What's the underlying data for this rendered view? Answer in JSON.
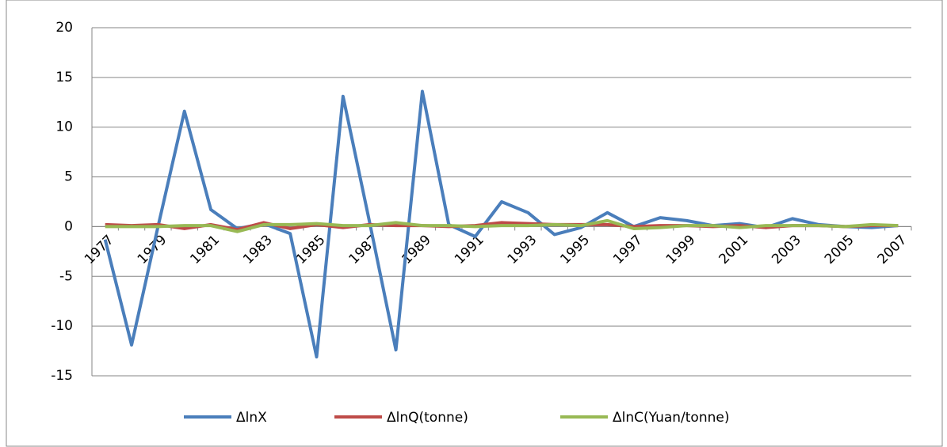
{
  "chart_data": {
    "type": "line",
    "categories": [
      "1977",
      null,
      "1979",
      null,
      "1981",
      null,
      "1983",
      null,
      "1985",
      null,
      "1987",
      null,
      "1989",
      null,
      "1991",
      null,
      "1993",
      null,
      "1995",
      null,
      "1997",
      null,
      "1999",
      null,
      "2001",
      null,
      "2003",
      null,
      "2005",
      null,
      "2007"
    ],
    "series": [
      {
        "name": "ΔlnX",
        "color": "#4a7ebb",
        "values": [
          -1.3,
          -11.9,
          0,
          11.6,
          1.7,
          -0.2,
          0.3,
          -0.7,
          -13.1,
          13.1,
          0.5,
          -12.4,
          13.6,
          0.2,
          -1.0,
          2.5,
          1.4,
          -0.8,
          -0.1,
          1.4,
          0.0,
          0.9,
          0.6,
          0.1,
          0.3,
          -0.1,
          0.8,
          0.2,
          0.0,
          -0.1,
          0.1
        ]
      },
      {
        "name": "ΔlnQ(tonne)",
        "color": "#be4b48",
        "values": [
          0.2,
          0.1,
          0.2,
          -0.2,
          0.2,
          -0.3,
          0.4,
          -0.2,
          0.2,
          -0.1,
          0.2,
          0.1,
          0.1,
          0.0,
          0.1,
          0.4,
          0.3,
          0.2,
          0.2,
          0.2,
          0.0,
          0.1,
          0.1,
          0.0,
          0.1,
          -0.1,
          0.1,
          0.1,
          0.0,
          0.1,
          0.1
        ]
      },
      {
        "name": "ΔlnC(Yuan/tonne)",
        "color": "#98b954",
        "values": [
          0.0,
          0.0,
          0.0,
          0.1,
          0.1,
          -0.5,
          0.2,
          0.2,
          0.3,
          0.1,
          0.1,
          0.4,
          0.1,
          0.1,
          0.0,
          0.1,
          0.1,
          0.2,
          0.1,
          0.6,
          -0.2,
          -0.1,
          0.1,
          0.1,
          -0.1,
          0.1,
          0.1,
          0.1,
          0.0,
          0.2,
          0.1
        ]
      }
    ],
    "ylim": [
      -15,
      20
    ],
    "yticks": [
      -15,
      -10,
      -5,
      0,
      5,
      10,
      15,
      20
    ],
    "grid": true,
    "legend": "bottom"
  }
}
